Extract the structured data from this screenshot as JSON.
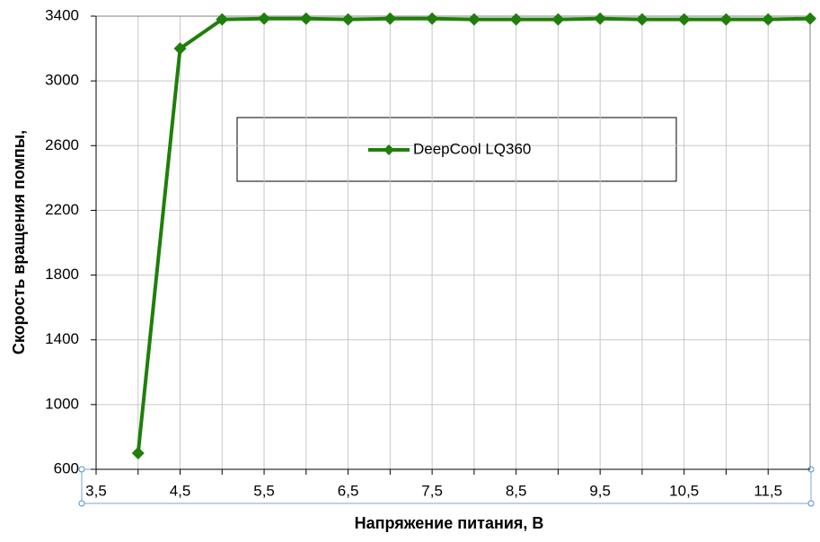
{
  "chart_data": {
    "type": "line",
    "y_label": "Скорость вращения помпы,",
    "x_label": "Напряжение питания, В",
    "x": [
      4,
      4.5,
      5,
      5.5,
      6,
      6.5,
      7,
      7.5,
      8,
      8.5,
      9,
      9.5,
      10,
      10.5,
      11,
      11.5,
      12
    ],
    "series": [
      {
        "name": "DeepCool LQ360",
        "color": "#1f7f0a",
        "values": [
          700,
          3200,
          3380,
          3385,
          3385,
          3380,
          3385,
          3385,
          3380,
          3380,
          3380,
          3385,
          3380,
          3380,
          3380,
          3380,
          3385
        ]
      }
    ],
    "xlim": [
      3.5,
      12
    ],
    "xticks": [
      {
        "value": 3.5,
        "label": "3,5"
      },
      {
        "value": 4.5,
        "label": "4,5"
      },
      {
        "value": 5.5,
        "label": "5,5"
      },
      {
        "value": 6.5,
        "label": "6,5"
      },
      {
        "value": 7.5,
        "label": "7,5"
      },
      {
        "value": 8.5,
        "label": "8,5"
      },
      {
        "value": 9.5,
        "label": "9,5"
      },
      {
        "value": 10.5,
        "label": "10,5"
      },
      {
        "value": 11.5,
        "label": "11,5"
      }
    ],
    "xminor": [
      4,
      5,
      6,
      7,
      8,
      9,
      10,
      11
    ],
    "ylim": [
      600,
      3400
    ],
    "yticks": [
      600,
      1000,
      1400,
      1800,
      2200,
      2600,
      3000,
      3400
    ],
    "grid": true
  }
}
